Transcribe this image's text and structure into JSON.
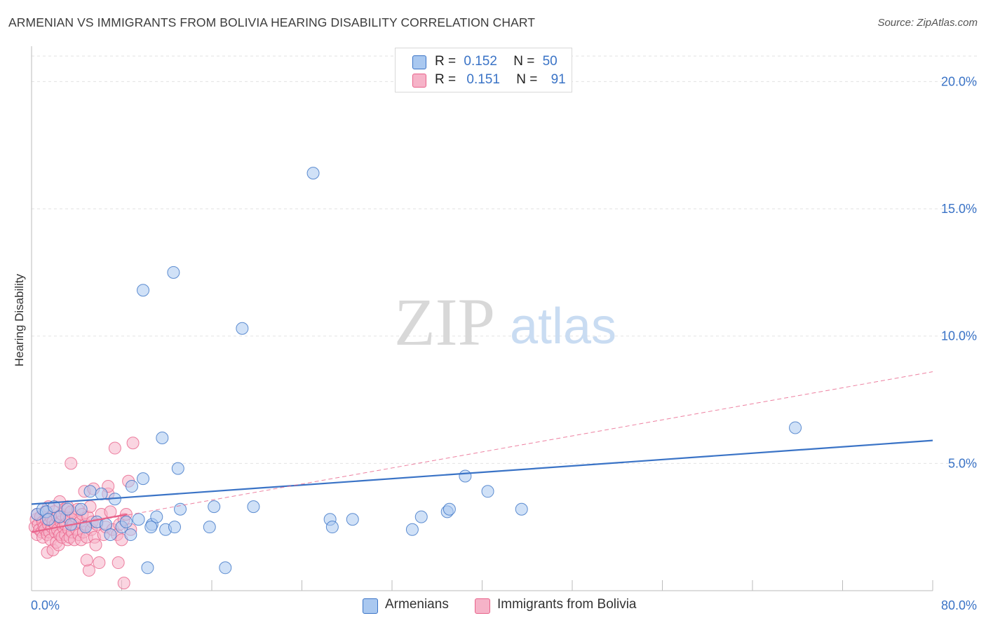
{
  "title": "ARMENIAN VS IMMIGRANTS FROM BOLIVIA HEARING DISABILITY CORRELATION CHART",
  "source": "Source: ZipAtlas.com",
  "watermark": {
    "zip": "ZIP",
    "atlas": "atlas"
  },
  "legend": {
    "armenians": {
      "r_label": "R =",
      "r_value": "0.152",
      "n_label": "N =",
      "n_value": "50"
    },
    "bolivia": {
      "r_label": "R =",
      "r_value": "0.151",
      "n_label": "N =",
      "n_value": "91"
    }
  },
  "chart_data": {
    "type": "scatter",
    "title": "ARMENIAN VS IMMIGRANTS FROM BOLIVIA HEARING DISABILITY CORRELATION CHART",
    "xlabel": "",
    "ylabel": "Hearing Disability",
    "xlim": [
      0,
      80
    ],
    "ylim": [
      0,
      21
    ],
    "x_tick_labels": [
      "0.0%",
      "80.0%"
    ],
    "y_ticks": [
      5,
      10,
      15,
      20
    ],
    "y_tick_labels": [
      "5.0%",
      "10.0%",
      "15.0%",
      "20.0%"
    ],
    "grid": true,
    "colors": {
      "armenians": "#3a73c6",
      "armenians_fill": "#a9c8f0",
      "bolivia": "#e8628a",
      "bolivia_fill": "#f6b3c8",
      "tick_text": "#3a73c6"
    },
    "series": [
      {
        "name": "Armenians",
        "key": "armenians",
        "points": [
          [
            0.5,
            3.0
          ],
          [
            1.0,
            3.2
          ],
          [
            1.3,
            3.1
          ],
          [
            1.5,
            2.8
          ],
          [
            2.0,
            3.3
          ],
          [
            2.5,
            2.9
          ],
          [
            3.2,
            3.2
          ],
          [
            3.5,
            2.6
          ],
          [
            4.4,
            3.2
          ],
          [
            4.8,
            2.5
          ],
          [
            5.2,
            3.9
          ],
          [
            5.8,
            2.7
          ],
          [
            6.2,
            3.8
          ],
          [
            6.6,
            2.6
          ],
          [
            7.0,
            2.2
          ],
          [
            7.4,
            3.6
          ],
          [
            8.0,
            2.5
          ],
          [
            8.4,
            2.7
          ],
          [
            8.8,
            2.2
          ],
          [
            8.9,
            4.1
          ],
          [
            9.5,
            2.8
          ],
          [
            9.9,
            4.4
          ],
          [
            10.7,
            2.6
          ],
          [
            11.1,
            2.9
          ],
          [
            11.9,
            2.4
          ],
          [
            9.9,
            11.8
          ],
          [
            10.3,
            0.9
          ],
          [
            10.6,
            2.5
          ],
          [
            11.6,
            6.0
          ],
          [
            12.7,
            2.5
          ],
          [
            12.6,
            12.5
          ],
          [
            13.0,
            4.8
          ],
          [
            13.2,
            3.2
          ],
          [
            15.8,
            2.5
          ],
          [
            16.2,
            3.3
          ],
          [
            17.2,
            0.9
          ],
          [
            18.7,
            10.3
          ],
          [
            19.7,
            3.3
          ],
          [
            25.0,
            16.4
          ],
          [
            26.5,
            2.8
          ],
          [
            26.7,
            2.5
          ],
          [
            28.5,
            2.8
          ],
          [
            33.8,
            2.4
          ],
          [
            34.6,
            2.9
          ],
          [
            36.9,
            3.1
          ],
          [
            37.1,
            3.2
          ],
          [
            38.5,
            4.5
          ],
          [
            40.5,
            3.9
          ],
          [
            43.5,
            3.2
          ],
          [
            67.8,
            6.4
          ]
        ],
        "trend": {
          "x": [
            0,
            80
          ],
          "y": [
            3.4,
            5.9
          ],
          "style": "solid"
        }
      },
      {
        "name": "Immigrants from Bolivia",
        "key": "bolivia",
        "points": [
          [
            0.3,
            2.5
          ],
          [
            0.4,
            2.8
          ],
          [
            0.5,
            3.0
          ],
          [
            0.5,
            2.2
          ],
          [
            0.6,
            2.6
          ],
          [
            0.7,
            2.4
          ],
          [
            0.8,
            2.9
          ],
          [
            0.9,
            2.3
          ],
          [
            1.0,
            2.7
          ],
          [
            1.0,
            2.1
          ],
          [
            1.1,
            2.5
          ],
          [
            1.2,
            3.1
          ],
          [
            1.2,
            2.4
          ],
          [
            1.3,
            2.8
          ],
          [
            1.4,
            2.2
          ],
          [
            1.4,
            1.5
          ],
          [
            1.5,
            2.6
          ],
          [
            1.5,
            3.3
          ],
          [
            1.6,
            2.3
          ],
          [
            1.7,
            2.9
          ],
          [
            1.7,
            2.0
          ],
          [
            1.8,
            2.5
          ],
          [
            1.9,
            1.6
          ],
          [
            1.9,
            2.7
          ],
          [
            2.0,
            3.1
          ],
          [
            2.1,
            2.3
          ],
          [
            2.1,
            2.6
          ],
          [
            2.2,
            1.9
          ],
          [
            2.3,
            2.4
          ],
          [
            2.3,
            2.9
          ],
          [
            2.4,
            1.8
          ],
          [
            2.5,
            3.5
          ],
          [
            2.5,
            2.2
          ],
          [
            2.6,
            2.7
          ],
          [
            2.7,
            2.1
          ],
          [
            2.7,
            3.0
          ],
          [
            2.8,
            2.5
          ],
          [
            2.9,
            3.2
          ],
          [
            3.0,
            2.2
          ],
          [
            3.0,
            2.6
          ],
          [
            3.1,
            2.9
          ],
          [
            3.2,
            3.3
          ],
          [
            3.2,
            2.0
          ],
          [
            3.3,
            2.4
          ],
          [
            3.4,
            2.8
          ],
          [
            3.4,
            2.1
          ],
          [
            3.5,
            3.1
          ],
          [
            3.6,
            2.3
          ],
          [
            3.7,
            2.6
          ],
          [
            3.8,
            2.0
          ],
          [
            3.9,
            2.9
          ],
          [
            4.0,
            2.4
          ],
          [
            4.1,
            3.2
          ],
          [
            4.2,
            2.2
          ],
          [
            4.3,
            2.7
          ],
          [
            4.4,
            2.0
          ],
          [
            4.5,
            3.0
          ],
          [
            4.6,
            2.3
          ],
          [
            4.7,
            3.9
          ],
          [
            4.8,
            2.6
          ],
          [
            4.9,
            2.1
          ],
          [
            5.0,
            2.9
          ],
          [
            5.1,
            0.8
          ],
          [
            5.2,
            3.3
          ],
          [
            5.3,
            2.4
          ],
          [
            5.4,
            2.7
          ],
          [
            5.5,
            4.0
          ],
          [
            5.6,
            2.1
          ],
          [
            5.7,
            1.8
          ],
          [
            5.8,
            2.6
          ],
          [
            6.0,
            1.1
          ],
          [
            6.2,
            3.0
          ],
          [
            6.4,
            2.2
          ],
          [
            6.6,
            2.5
          ],
          [
            6.8,
            3.8
          ],
          [
            7.0,
            3.1
          ],
          [
            7.2,
            2.4
          ],
          [
            7.4,
            5.6
          ],
          [
            7.6,
            2.2
          ],
          [
            7.8,
            2.6
          ],
          [
            8.0,
            2.0
          ],
          [
            8.2,
            2.8
          ],
          [
            8.4,
            3.0
          ],
          [
            8.6,
            4.3
          ],
          [
            8.8,
            2.4
          ],
          [
            9.0,
            5.8
          ],
          [
            7.7,
            1.1
          ],
          [
            8.2,
            0.3
          ],
          [
            3.5,
            5.0
          ],
          [
            6.8,
            4.1
          ],
          [
            4.9,
            1.2
          ]
        ],
        "trend": {
          "x": [
            0,
            8.5
          ],
          "y": [
            2.3,
            3.0
          ],
          "style": "solid"
        },
        "trend_extended": {
          "x": [
            0,
            80
          ],
          "y": [
            2.3,
            8.6
          ],
          "style": "dashed"
        }
      }
    ]
  },
  "bottom_legend": {
    "armenians": "Armenians",
    "bolivia": "Immigrants from Bolivia"
  }
}
